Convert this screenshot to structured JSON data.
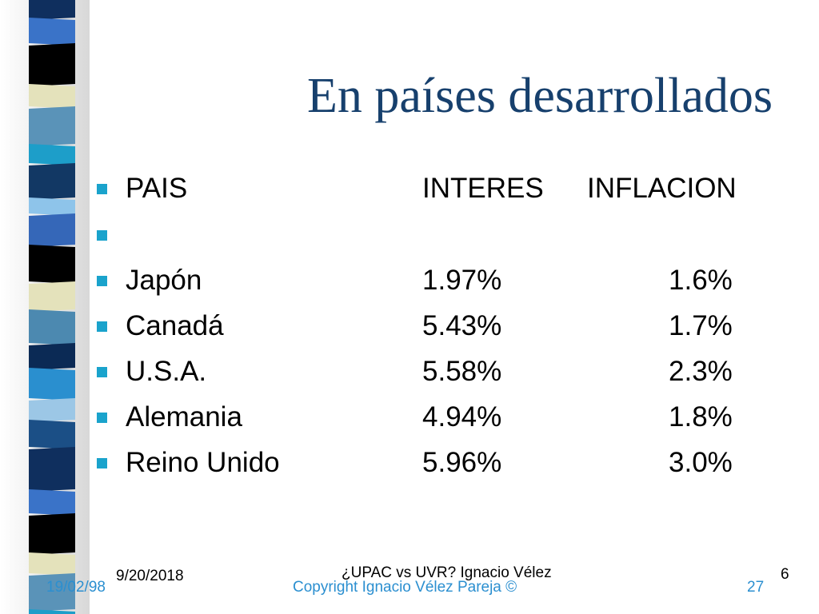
{
  "slide": {
    "title": "En países desarrollados",
    "bullet_color": "#1aa3cc",
    "title_color": "#17406d"
  },
  "table": {
    "headers": {
      "country": "PAIS",
      "interest": "INTERES",
      "inflation": "INFLACION"
    },
    "rows": [
      {
        "country": "Japón",
        "interest": "1.97%",
        "inflation": "1.6%"
      },
      {
        "country": "Canadá",
        "interest": "5.43%",
        "inflation": "1.7%"
      },
      {
        "country": "U.S.A.",
        "interest": "5.58%",
        "inflation": "2.3%"
      },
      {
        "country": "Alemania",
        "interest": "4.94%",
        "inflation": "1.8%"
      },
      {
        "country": "Reino Unido",
        "interest": "5.96%",
        "inflation": "3.0%"
      }
    ]
  },
  "footer": {
    "date": "9/20/2018",
    "center": "¿UPAC vs UVR? Ignacio Vélez",
    "page": "6",
    "old_date": "19/02/98",
    "copyright": "Copyright Ignacio Vélez Pareja ©",
    "old_page": "27"
  }
}
